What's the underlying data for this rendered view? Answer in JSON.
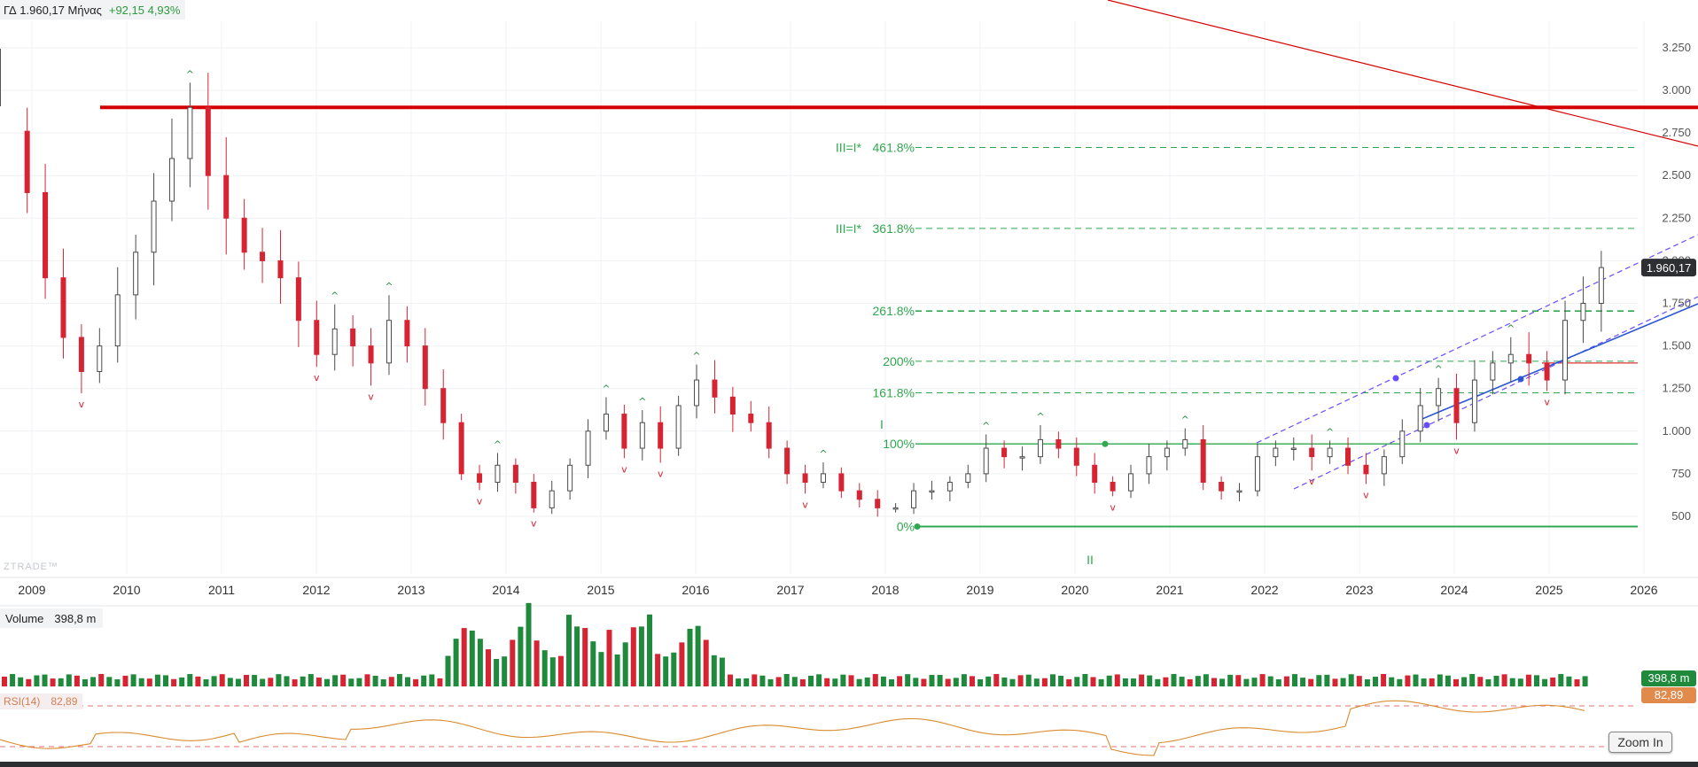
{
  "header": {
    "instrument": "ΓΔ",
    "last": "1.960,17",
    "period": "Μήνας",
    "change": "+92,15 4,93%"
  },
  "watermark": "ZTRADE™",
  "colors": {
    "up_fill": "#ffffff",
    "up_border": "#4a4a4a",
    "down": "#d62433",
    "vol_up": "#1f8a3c",
    "vol_down": "#d62433",
    "fib": "#2fa84f",
    "resistance": "#d40000",
    "channel": "#6a4cff",
    "trend": "#2c57d6",
    "rsi": "#d88b2f"
  },
  "chart_data": {
    "type": "candlestick",
    "interval": "monthly",
    "price_axis_ticks": [
      "500",
      "750",
      "1.000",
      "1.250",
      "1.500",
      "1.750",
      "2.000",
      "2.250",
      "2.500",
      "2.750",
      "3.000",
      "3.250"
    ],
    "price_tick_values": [
      500,
      750,
      1000,
      1250,
      1500,
      1750,
      2000,
      2250,
      2500,
      2750,
      3000,
      3250
    ],
    "year_labels": [
      "2009",
      "2010",
      "2011",
      "2012",
      "2013",
      "2014",
      "2015",
      "2016",
      "2017",
      "2018",
      "2019",
      "2020",
      "2021",
      "2022",
      "2023",
      "2024",
      "2025",
      "2026"
    ],
    "last_price_label": "1.960,17",
    "last_price": 1960.17,
    "series": [
      {
        "name": "ΓΔ",
        "closes": [
          2400,
          1900,
          1550,
          1350,
          1500,
          1800,
          2050,
          2350,
          2600,
          2900,
          2500,
          2250,
          2050,
          2000,
          1900,
          1650,
          1450,
          1600,
          1500,
          1400,
          1650,
          1500,
          1250,
          1050,
          750,
          700,
          800,
          700,
          550,
          650,
          800,
          1000,
          1100,
          900,
          1050,
          900,
          1150,
          1300,
          1200,
          1100,
          1050,
          900,
          750,
          700,
          750,
          650,
          600,
          550,
          550,
          650,
          650,
          700,
          750,
          900,
          850,
          850,
          950,
          900,
          800,
          700,
          650,
          750,
          850,
          900,
          950,
          700,
          650,
          650,
          850,
          900,
          900,
          850,
          900,
          800,
          750,
          850,
          1000,
          1150,
          1250,
          1050,
          1300,
          1400,
          1450,
          1400,
          1300,
          1650,
          1750,
          1960
        ]
      }
    ],
    "resistance_level": 2900,
    "fibonacci": [
      {
        "label": "0%",
        "price": 440
      },
      {
        "label": "100%",
        "price": 925
      },
      {
        "label": "161.8%",
        "price": 1225
      },
      {
        "label": "200%",
        "price": 1410
      },
      {
        "label": "261.8%",
        "price": 1705
      },
      {
        "label": "361.8%",
        "price": 2190
      },
      {
        "label": "461.8%",
        "price": 2665
      }
    ],
    "wave_labels": {
      "I": "I",
      "II": "II",
      "III_361": "III=I*",
      "III_461": "III=I*"
    },
    "volume": {
      "label": "Volume",
      "value": "398,8 m",
      "last_tag": "398,8 m"
    },
    "rsi": {
      "label": "RSI(14)",
      "value": "82,89",
      "last_tag": "82,89",
      "overbought": 70,
      "oversold": 30
    }
  },
  "controls": {
    "zoom_in": "Zoom In"
  }
}
